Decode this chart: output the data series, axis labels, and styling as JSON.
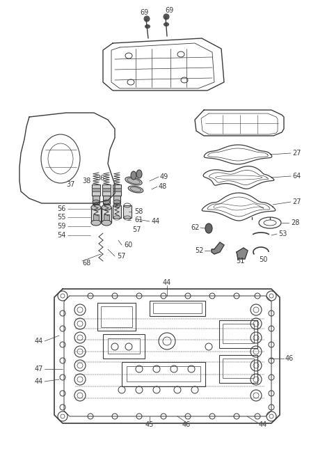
{
  "background_color": "#ffffff",
  "line_color": "#3a3a3a",
  "fig_width": 4.8,
  "fig_height": 6.55,
  "dpi": 100
}
